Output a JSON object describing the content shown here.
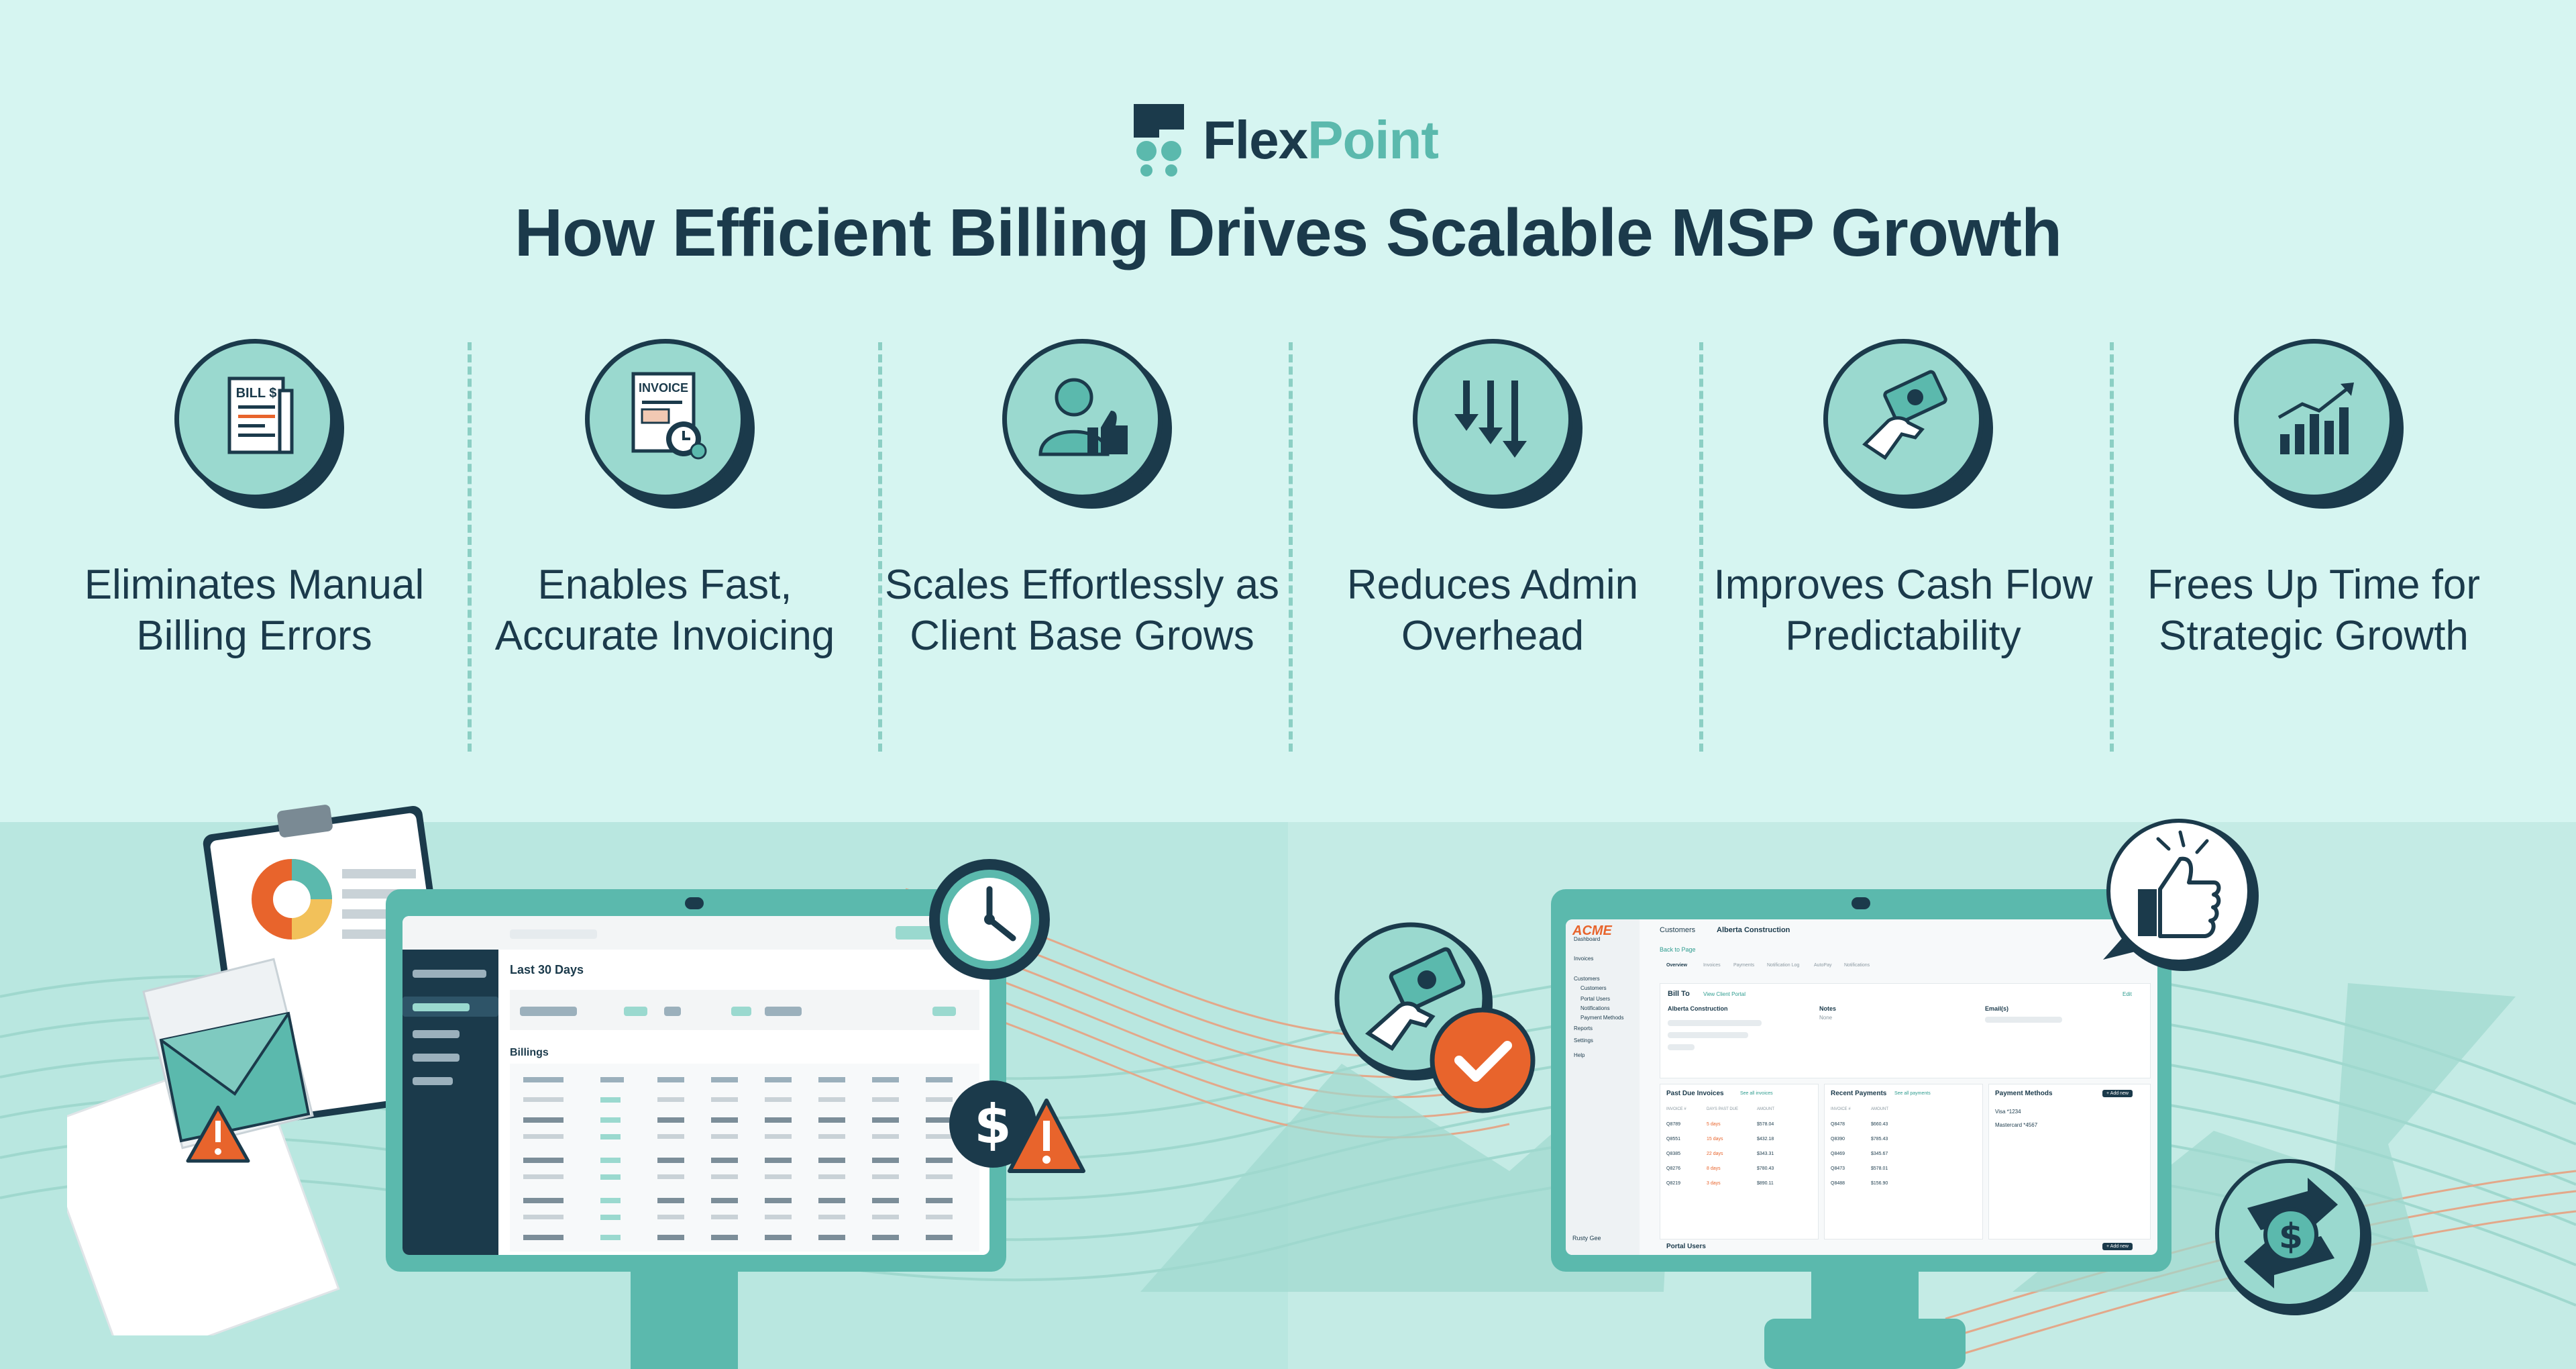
{
  "brand": {
    "name_dark": "Flex",
    "name_accent": "Point"
  },
  "title": "How Efficient Billing Drives Scalable MSP Growth",
  "features": [
    {
      "label": "Eliminates Manual Billing Errors",
      "icon": "bill-icon",
      "icon_text": "BILL $"
    },
    {
      "label": "Enables Fast, Accurate Invoicing",
      "icon": "invoice-icon",
      "icon_text": "INVOICE"
    },
    {
      "label": "Scales Effortlessly as Client Base Grows",
      "icon": "user-thumbs-up-icon"
    },
    {
      "label": "Reduces Admin Overhead",
      "icon": "arrows-down-icon"
    },
    {
      "label": "Improves Cash Flow Predictability",
      "icon": "hand-money-icon"
    },
    {
      "label": "Frees Up Time for Strategic Growth",
      "icon": "growth-chart-icon"
    }
  ],
  "left_screen": {
    "period": "Last 30 Days",
    "section": "Billings"
  },
  "right_screen": {
    "logo": "ACME",
    "breadcrumb_root": "Customers",
    "breadcrumb_current": "Alberta Construction",
    "back": "Back to Page",
    "nav": [
      "Dashboard",
      "Invoices",
      "Customers",
      "Customers",
      "Portal Users",
      "Notifications",
      "Payment Methods",
      "Reports",
      "Settings",
      "Help"
    ],
    "tabs": [
      "Overview",
      "Invoices",
      "Payments",
      "Notification Log",
      "AutoPay",
      "Notifications"
    ],
    "bill_to": "Bill To",
    "view_portal": "View Client Portal",
    "edit": "Edit",
    "company": "Alberta Construction",
    "notes_label": "Notes",
    "notes_value": "None",
    "emails_label": "Email(s)",
    "past_due": "Past Due Invoices",
    "see_invoices": "See all invoices",
    "recent_payments": "Recent Payments",
    "see_payments": "See all payments",
    "payment_methods": "Payment Methods",
    "add_new": "+ Add new",
    "pm_items": [
      "Visa *1234",
      "Mastercard *4567"
    ],
    "portal_users": "Portal Users",
    "user_name": "Rusty Gee",
    "invoice_headers": [
      "INVOICE #",
      "DAYS PAST DUE",
      "AMOUNT"
    ],
    "invoice_rows": [
      [
        "Q8789",
        "5 days",
        "$578.04"
      ],
      [
        "Q8551",
        "15 days",
        "$432.18"
      ],
      [
        "Q8385",
        "22 days",
        "$343.31"
      ],
      [
        "Q8276",
        "8 days",
        "$780.43"
      ],
      [
        "Q8219",
        "3 days",
        "$890.11"
      ]
    ],
    "payment_headers": [
      "INVOICE #",
      "AMOUNT"
    ],
    "payment_rows": [
      [
        "Q8478",
        "$660.43"
      ],
      [
        "Q8390",
        "$785.43"
      ],
      [
        "Q8469",
        "$345.67"
      ],
      [
        "Q8473",
        "$578.01"
      ],
      [
        "Q8488",
        "$156.90"
      ]
    ]
  },
  "colors": {
    "navy": "#1b3a4b",
    "teal": "#5bb9ad",
    "mint": "#d6f5f1",
    "orange": "#e8642c"
  }
}
